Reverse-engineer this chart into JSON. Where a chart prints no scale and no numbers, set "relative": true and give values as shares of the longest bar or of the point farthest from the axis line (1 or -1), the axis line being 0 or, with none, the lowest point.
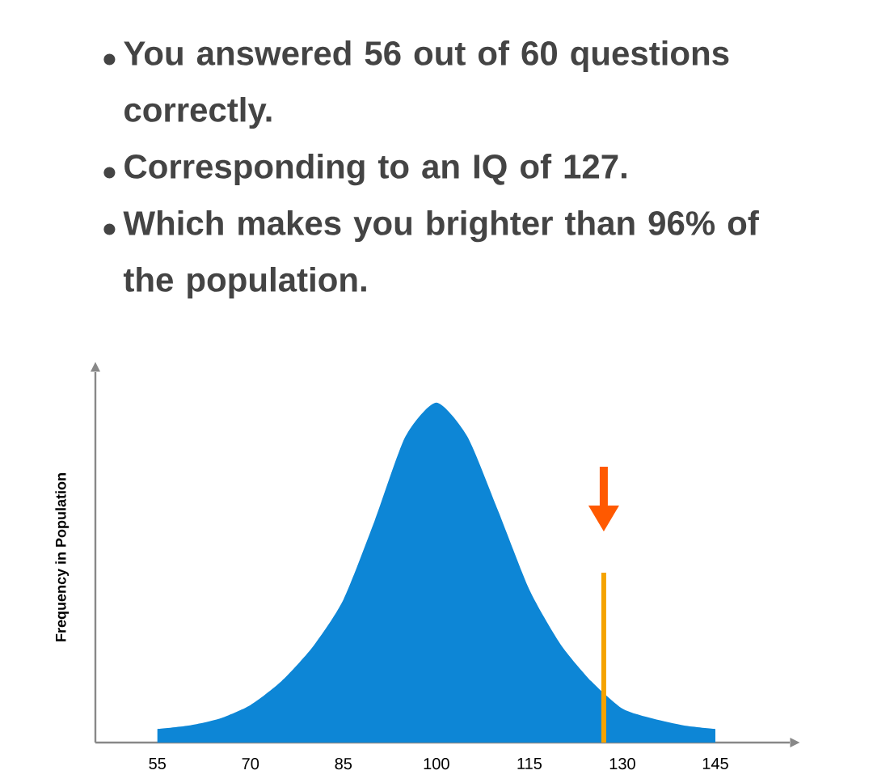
{
  "chart_data": {
    "type": "area",
    "relative": true,
    "annotations": [
      "You answered 56 out of 60 questions correctly.",
      "Corresponding to an IQ of 127.",
      "Which makes you brighter than 96% of the population."
    ],
    "ylabel": "Frequency in Population",
    "x": [
      55,
      60,
      65,
      70,
      75,
      80,
      85,
      90,
      95,
      100,
      105,
      110,
      115,
      120,
      125,
      130,
      135,
      140,
      145
    ],
    "values": [
      0.04,
      0.05,
      0.07,
      0.11,
      0.18,
      0.28,
      0.42,
      0.65,
      0.9,
      1,
      0.9,
      0.68,
      0.45,
      0.29,
      0.18,
      0.1,
      0.07,
      0.05,
      0.04
    ],
    "color": "#0d86d6",
    "xlim": [
      45,
      157
    ],
    "xticks": [
      55,
      70,
      85,
      100,
      115,
      130,
      145
    ],
    "ref_lines": [
      {
        "axis": "x",
        "value": 127,
        "color": "#f5a300"
      }
    ]
  }
}
